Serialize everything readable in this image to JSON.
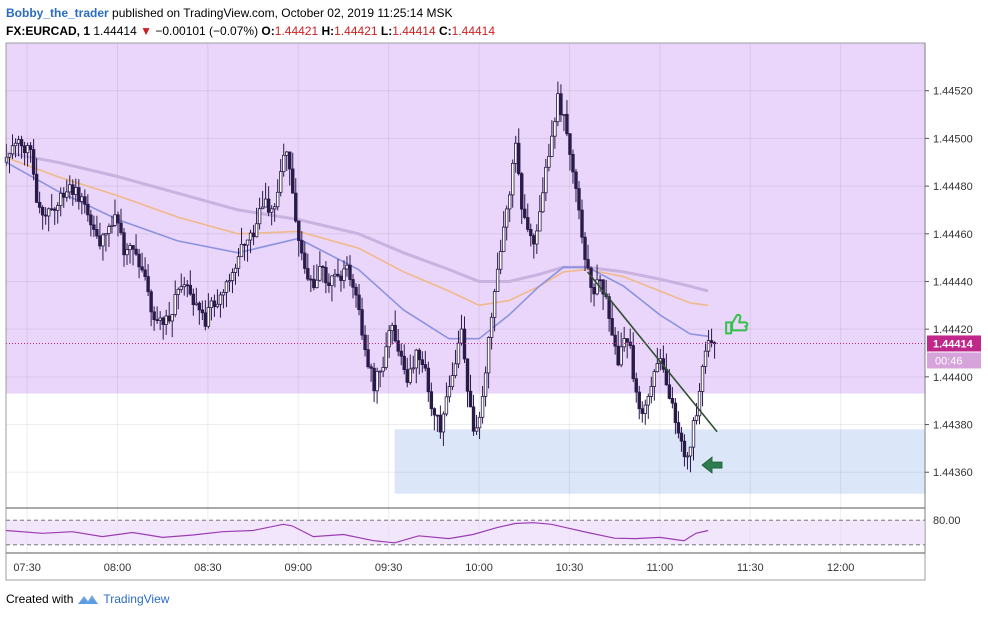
{
  "header": {
    "author": "Bobby_the_trader",
    "published_text": "published on TradingView.com, October 02, 2019 11:25:14 MSK",
    "symbol": "FX:EURCAD, 1",
    "last": "1.44414",
    "change": "−0.00101 (−0.07%)",
    "o_label": "O:",
    "o_value": "1.44421",
    "h_label": "H:",
    "h_value": "1.44421",
    "l_label": "L:",
    "l_value": "1.44414",
    "c_label": "C:",
    "c_value": "1.44414"
  },
  "footer": {
    "created_with": "Created with",
    "brand": "TradingView"
  },
  "colors": {
    "zone_purple": "#ead6fa",
    "zone_blue": "#dbe7f8",
    "candle": "#2a1a4a",
    "ema_blue": "#8b93e0",
    "ema_orange": "#f0b98a",
    "ema_purple": "#c9b2e0",
    "trendline": "#2f5230",
    "price_tag": "#c0278a",
    "timer_tag": "#d6a3da",
    "arrow_green": "#2e7d4f",
    "thumb_green": "#33c24a",
    "rsi_line": "#9b3cb4"
  },
  "chart_data": {
    "type": "candlestick",
    "title": "",
    "symbol": "FX:EURCAD",
    "interval": "1",
    "ylim": [
      1.44345,
      1.4454
    ],
    "y_ticks": [
      1.4436,
      1.4438,
      1.444,
      1.4442,
      1.4444,
      1.4446,
      1.4448,
      1.445,
      1.4452
    ],
    "y_tick_labels": [
      "1.44360",
      "1.44380",
      "1.44400",
      "1.44420",
      "1.44440",
      "1.44460",
      "1.44480",
      "1.44500",
      "1.44520"
    ],
    "x_tick_labels": [
      "07:30",
      "08:00",
      "08:30",
      "09:00",
      "09:30",
      "10:00",
      "10:30",
      "11:00",
      "11:30",
      "12:00"
    ],
    "x_tick_minutes": [
      450,
      480,
      510,
      540,
      570,
      600,
      630,
      660,
      690,
      720
    ],
    "x_start_minute": 443,
    "x_end_minute": 748,
    "current_price": 1.44414,
    "current_price_label": "1.44414",
    "countdown_label": "00:46",
    "grid": true,
    "close_path": [
      [
        443,
        1.4449
      ],
      [
        447,
        1.44498
      ],
      [
        451,
        1.44495
      ],
      [
        453,
        1.44472
      ],
      [
        455,
        1.44468
      ],
      [
        460,
        1.44473
      ],
      [
        464,
        1.44478
      ],
      [
        468,
        1.44476
      ],
      [
        471,
        1.44462
      ],
      [
        474,
        1.44455
      ],
      [
        477,
        1.44462
      ],
      [
        479,
        1.44468
      ],
      [
        482,
        1.44454
      ],
      [
        485,
        1.44452
      ],
      [
        488,
        1.44445
      ],
      [
        490,
        1.44434
      ],
      [
        492,
        1.44424
      ],
      [
        494,
        1.44422
      ],
      [
        497,
        1.44423
      ],
      [
        500,
        1.44436
      ],
      [
        503,
        1.4444
      ],
      [
        505,
        1.44432
      ],
      [
        507,
        1.44426
      ],
      [
        509,
        1.44422
      ],
      [
        511,
        1.44431
      ],
      [
        513,
        1.44428
      ],
      [
        516,
        1.4444
      ],
      [
        519,
        1.44448
      ],
      [
        522,
        1.44456
      ],
      [
        525,
        1.4446
      ],
      [
        528,
        1.44474
      ],
      [
        531,
        1.44468
      ],
      [
        533,
        1.4448
      ],
      [
        536,
        1.44495
      ],
      [
        538,
        1.44478
      ],
      [
        540,
        1.44458
      ],
      [
        542,
        1.44448
      ],
      [
        545,
        1.44436
      ],
      [
        547,
        1.44447
      ],
      [
        550,
        1.44438
      ],
      [
        553,
        1.44442
      ],
      [
        556,
        1.44446
      ],
      [
        559,
        1.44432
      ],
      [
        562,
        1.44412
      ],
      [
        565,
        1.44396
      ],
      [
        568,
        1.44406
      ],
      [
        570,
        1.44422
      ],
      [
        572,
        1.44416
      ],
      [
        574,
        1.44408
      ],
      [
        576,
        1.44398
      ],
      [
        579,
        1.4441
      ],
      [
        582,
        1.44404
      ],
      [
        584,
        1.44388
      ],
      [
        587,
        1.44378
      ],
      [
        590,
        1.44394
      ],
      [
        592,
        1.44407
      ],
      [
        594,
        1.44418
      ],
      [
        596,
        1.44392
      ],
      [
        598,
        1.44378
      ],
      [
        600,
        1.44382
      ],
      [
        602,
        1.44402
      ],
      [
        604,
        1.44426
      ],
      [
        606,
        1.44446
      ],
      [
        608,
        1.44462
      ],
      [
        610,
        1.44478
      ],
      [
        612,
        1.44496
      ],
      [
        614,
        1.44472
      ],
      [
        616,
        1.44462
      ],
      [
        618,
        1.44456
      ],
      [
        620,
        1.44472
      ],
      [
        622,
        1.44488
      ],
      [
        624,
        1.44502
      ],
      [
        626,
        1.44516
      ],
      [
        628,
        1.44508
      ],
      [
        630,
        1.44492
      ],
      [
        632,
        1.44476
      ],
      [
        634,
        1.44458
      ],
      [
        636,
        1.44444
      ],
      [
        638,
        1.44436
      ],
      [
        640,
        1.44442
      ],
      [
        642,
        1.44432
      ],
      [
        644,
        1.44418
      ],
      [
        646,
        1.44406
      ],
      [
        648,
        1.44416
      ],
      [
        650,
        1.44412
      ],
      [
        652,
        1.44392
      ],
      [
        654,
        1.44382
      ],
      [
        656,
        1.44392
      ],
      [
        658,
        1.444
      ],
      [
        660,
        1.44406
      ],
      [
        662,
        1.44398
      ],
      [
        664,
        1.44388
      ],
      [
        666,
        1.44376
      ],
      [
        668,
        1.44366
      ],
      [
        670,
        1.44372
      ],
      [
        672,
        1.44386
      ],
      [
        674,
        1.44402
      ],
      [
        676,
        1.44416
      ],
      [
        678,
        1.44414
      ]
    ],
    "ema_fast_path": [
      [
        443,
        1.4449
      ],
      [
        460,
        1.44478
      ],
      [
        480,
        1.44466
      ],
      [
        500,
        1.44457
      ],
      [
        520,
        1.44452
      ],
      [
        540,
        1.44458
      ],
      [
        560,
        1.44445
      ],
      [
        575,
        1.44428
      ],
      [
        590,
        1.44416
      ],
      [
        600,
        1.44416
      ],
      [
        610,
        1.44426
      ],
      [
        620,
        1.44438
      ],
      [
        628,
        1.44446
      ],
      [
        636,
        1.44446
      ],
      [
        648,
        1.44438
      ],
      [
        660,
        1.44426
      ],
      [
        670,
        1.44418
      ],
      [
        676,
        1.44417
      ]
    ],
    "ema_mid_path": [
      [
        443,
        1.44492
      ],
      [
        460,
        1.44484
      ],
      [
        480,
        1.44476
      ],
      [
        500,
        1.44467
      ],
      [
        520,
        1.4446
      ],
      [
        540,
        1.44461
      ],
      [
        560,
        1.44454
      ],
      [
        575,
        1.44444
      ],
      [
        590,
        1.44436
      ],
      [
        600,
        1.4443
      ],
      [
        610,
        1.44432
      ],
      [
        620,
        1.44438
      ],
      [
        628,
        1.44444
      ],
      [
        636,
        1.44445
      ],
      [
        648,
        1.44442
      ],
      [
        660,
        1.44436
      ],
      [
        670,
        1.44431
      ],
      [
        676,
        1.4443
      ]
    ],
    "ema_slow_path": [
      [
        443,
        1.44494
      ],
      [
        460,
        1.4449
      ],
      [
        480,
        1.44484
      ],
      [
        500,
        1.44477
      ],
      [
        520,
        1.4447
      ],
      [
        540,
        1.44466
      ],
      [
        560,
        1.4446
      ],
      [
        575,
        1.44452
      ],
      [
        590,
        1.44445
      ],
      [
        600,
        1.4444
      ],
      [
        610,
        1.4444
      ],
      [
        620,
        1.44443
      ],
      [
        628,
        1.44446
      ],
      [
        636,
        1.44446
      ],
      [
        648,
        1.44444
      ],
      [
        660,
        1.44441
      ],
      [
        670,
        1.44438
      ],
      [
        676,
        1.44436
      ]
    ],
    "resistance_zone": {
      "from_minute": 443,
      "to_minute": 748,
      "low": 1.44393,
      "high": 1.4454
    },
    "support_zone": {
      "from_minute": 572,
      "to_minute": 748,
      "low": 1.44351,
      "high": 1.44378
    },
    "trendline": {
      "from": [
        636,
        1.44444
      ],
      "to": [
        679,
        1.44377
      ]
    },
    "rsi": {
      "label": "80.00",
      "ylim": [
        0,
        100
      ],
      "levels": [
        80,
        20
      ],
      "path": [
        [
          443,
          55
        ],
        [
          455,
          48
        ],
        [
          465,
          52
        ],
        [
          475,
          40
        ],
        [
          485,
          50
        ],
        [
          495,
          38
        ],
        [
          505,
          44
        ],
        [
          515,
          52
        ],
        [
          525,
          55
        ],
        [
          535,
          70
        ],
        [
          538,
          66
        ],
        [
          545,
          40
        ],
        [
          555,
          45
        ],
        [
          565,
          30
        ],
        [
          572,
          25
        ],
        [
          580,
          42
        ],
        [
          590,
          35
        ],
        [
          598,
          45
        ],
        [
          606,
          62
        ],
        [
          612,
          72
        ],
        [
          618,
          74
        ],
        [
          624,
          70
        ],
        [
          630,
          60
        ],
        [
          636,
          50
        ],
        [
          645,
          36
        ],
        [
          652,
          35
        ],
        [
          660,
          38
        ],
        [
          668,
          30
        ],
        [
          672,
          48
        ],
        [
          676,
          55
        ]
      ]
    }
  }
}
